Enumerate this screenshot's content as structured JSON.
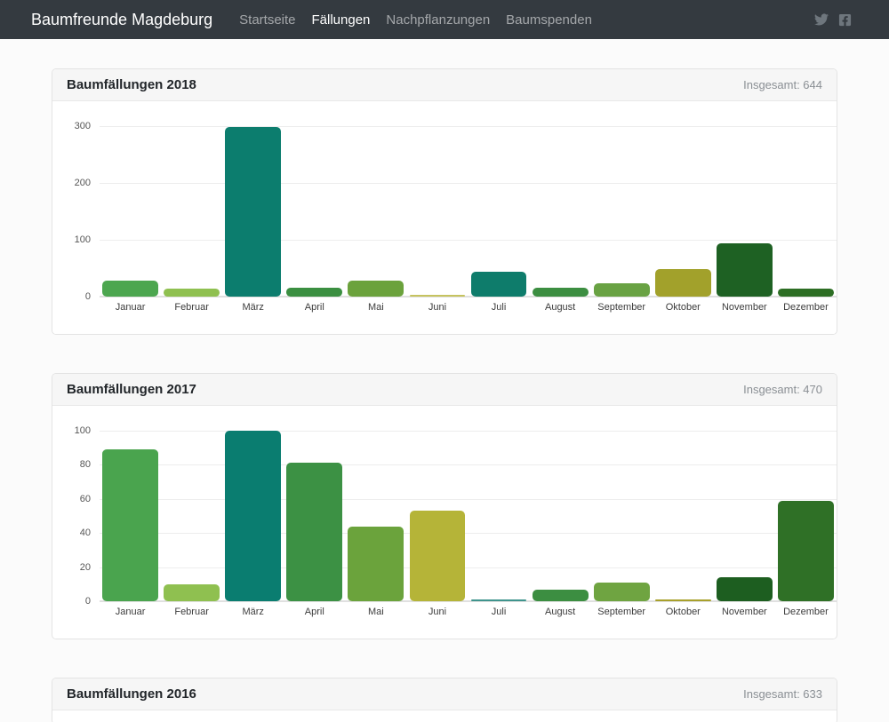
{
  "navbar": {
    "brand": "Baumfreunde Magdeburg",
    "items": [
      {
        "label": "Startseite",
        "active": false
      },
      {
        "label": "Fällungen",
        "active": true
      },
      {
        "label": "Nachpflanzungen",
        "active": false
      },
      {
        "label": "Baumspenden",
        "active": false
      }
    ],
    "social": [
      "twitter-icon",
      "facebook-icon"
    ],
    "colors": {
      "background": "#343a40",
      "link": "rgba(255,255,255,0.55)",
      "link_active": "#ffffff",
      "icon": "#6e767d"
    }
  },
  "cards": [
    {
      "title": "Baumfällungen 2018",
      "total": "Insgesamt: 644"
    },
    {
      "title": "Baumfällungen 2017",
      "total": "Insgesamt: 470"
    },
    {
      "title": "Baumfällungen 2016",
      "total": "Insgesamt: 633"
    }
  ],
  "chart_data": [
    {
      "type": "bar",
      "title": "Baumfällungen 2018",
      "total_shown": 644,
      "categories": [
        "Januar",
        "Februar",
        "März",
        "April",
        "Mai",
        "Juni",
        "Juli",
        "August",
        "September",
        "Oktober",
        "November",
        "Dezember"
      ],
      "values": [
        28,
        14,
        299,
        15,
        28,
        2,
        44,
        16,
        24,
        48,
        94,
        14
      ],
      "bar_colors": [
        "#4ca64f",
        "#8fc050",
        "#0c7d6e",
        "#3b8f41",
        "#6ba23c",
        "#c6c360",
        "#0e7c6b",
        "#3c8e41",
        "#69a243",
        "#a2a12b",
        "#1e6123",
        "#2d6e24"
      ],
      "xlabel": "",
      "ylabel": "",
      "ylim": [
        0,
        300
      ],
      "yticks": [
        0,
        100,
        200,
        300
      ],
      "grid": true,
      "legend": "none"
    },
    {
      "type": "bar",
      "title": "Baumfällungen 2017",
      "total_shown": 470,
      "categories": [
        "Januar",
        "Februar",
        "März",
        "April",
        "Mai",
        "Juni",
        "Juli",
        "August",
        "September",
        "Oktober",
        "November",
        "Dezember"
      ],
      "values": [
        89,
        10,
        100,
        81,
        44,
        53,
        1,
        7,
        11,
        1,
        14,
        59
      ],
      "bar_colors": [
        "#4aa44e",
        "#8fc050",
        "#0a7d70",
        "#3c9144",
        "#6ba33c",
        "#b5b438",
        "#3f948d",
        "#3c8e41",
        "#6fa441",
        "#a8a02b",
        "#1d5e20",
        "#2f7026"
      ],
      "xlabel": "",
      "ylabel": "",
      "ylim": [
        0,
        100
      ],
      "yticks": [
        0,
        20,
        40,
        60,
        80,
        100
      ],
      "grid": true,
      "legend": "none"
    },
    {
      "type": "bar",
      "title": "Baumfällungen 2016",
      "total_shown": 633,
      "note": "chart body cut off at bottom of screenshot; only card header visible"
    }
  ]
}
